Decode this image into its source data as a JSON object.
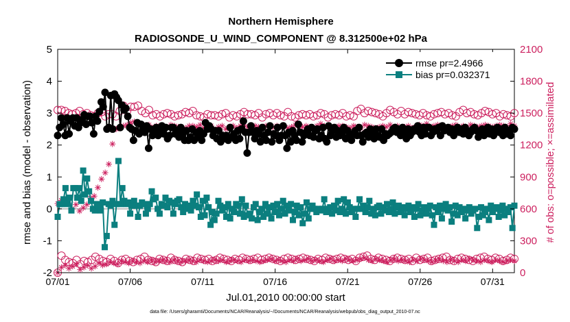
{
  "chart_data": {
    "type": "line",
    "title": "Northern Hemisphere",
    "subtitle": "RADIOSONDE_U_WIND_COMPONENT @ 8.312500e+02 hPa",
    "xlabel": "Jul.01,2010 00:00:00 start",
    "ylabel": "rmse and bias (model - observation)",
    "ylabel_right": "# of obs: o=possible; ×=assimilated",
    "ylim": [
      -2,
      5
    ],
    "ylim_right": [
      0,
      2100
    ],
    "y_ticks": [
      "-2",
      "-1",
      "0",
      "1",
      "2",
      "3",
      "4",
      "5"
    ],
    "y_ticks_right": [
      "0",
      "300",
      "600",
      "900",
      "1200",
      "1500",
      "1800",
      "2100"
    ],
    "x_ticks": [
      "07/01",
      "07/06",
      "07/11",
      "07/16",
      "07/21",
      "07/26",
      "07/31"
    ],
    "xlim_days": [
      1,
      32.5
    ],
    "footnote": "data file: /Users/gharamti/Documents/NCAR/Reanalysis/~/Documents/NCAR/Reanalysis/webpub/obs_diag_output_2010-07.nc",
    "colors": {
      "rmse": "#000000",
      "bias": "#0b7f7f",
      "obs": "#cc1f5e",
      "zero_line": "#b0b0b0"
    },
    "series": [
      {
        "name": "rmse",
        "legend": "rmse pr=2.4966",
        "axis": "left",
        "values": [
          2.3,
          2.55,
          2.85,
          2.65,
          2.3,
          2.85,
          2.35,
          2.75,
          2.85,
          2.6,
          2.85,
          2.55,
          2.7,
          2.8,
          2.95,
          2.65,
          2.9,
          2.9,
          2.7,
          2.35,
          2.9,
          2.75,
          3.05,
          3.35,
          3.2,
          3.65,
          2.5,
          2.55,
          3.55,
          2.5,
          3.6,
          3.5,
          3.4,
          2.55,
          3.25,
          3.1,
          3.15,
          2.9,
          2.55,
          2.5,
          2.15,
          2.45,
          2.7,
          2.35,
          2.65,
          2.5,
          2.4,
          2.6,
          1.9,
          2.5,
          2.3,
          2.35,
          2.55,
          2.3,
          2.45,
          2.6,
          2.35,
          2.55,
          2.2,
          2.3,
          2.55,
          2.55,
          2.35,
          2.45,
          2.25,
          2.55,
          2.35,
          2.15,
          2.45,
          2.15,
          2.25,
          2.5,
          2.15,
          2.4,
          2.25,
          2.45,
          2.15,
          2.35,
          2.7,
          2.5,
          2.6,
          2.5,
          2.3,
          2.45,
          2.2,
          2.45,
          2.1,
          2.3,
          2.2,
          2.3,
          2.15,
          2.55,
          2.25,
          2.35,
          2.15,
          2.45,
          2.2,
          2.5,
          2.75,
          2.4,
          1.75,
          2.4,
          2.6,
          2.4,
          2.2,
          2.45,
          2.35,
          2.1,
          2.55,
          2.3,
          2.15,
          2.4,
          2.6,
          2.1,
          2.35,
          2.3,
          2.55,
          2.15,
          2.3,
          2.6,
          2.3,
          1.9,
          2.4,
          2.1,
          2.45,
          2.3,
          2.15,
          2.65,
          2.4,
          2.1,
          2.3,
          2.4,
          2.5,
          2.3,
          2.55,
          2.25,
          2.45,
          2.5,
          2.2,
          2.3,
          2.55,
          2.2,
          2.1,
          2.6,
          2.3,
          2.45,
          2.55,
          2.25,
          2.45,
          2.3,
          2.35,
          2.55,
          2.2,
          2.45,
          2.3,
          2.15,
          2.35,
          2.45,
          2.3,
          2.55,
          2.3,
          2.1,
          2.35,
          2.4,
          2.25,
          2.5,
          2.35,
          2.2,
          2.5,
          2.3,
          2.25,
          2.5,
          2.15,
          2.35,
          2.3,
          2.35,
          2.4,
          2.5,
          2.55,
          2.4,
          2.5,
          2.3,
          2.55,
          2.35,
          2.2,
          2.5,
          2.3,
          2.4,
          2.5,
          2.45,
          2.6,
          2.4,
          2.3,
          2.55,
          2.35,
          2.55,
          2.55,
          2.3,
          2.4,
          2.5,
          2.45,
          2.55,
          2.3,
          2.6,
          2.45,
          2.5,
          2.55,
          2.4,
          2.5,
          2.3,
          2.45,
          2.55,
          2.4,
          2.5,
          2.35,
          2.55,
          2.45,
          2.3,
          2.4,
          2.5,
          2.55,
          2.45,
          2.25,
          2.4,
          2.5,
          2.3,
          2.45,
          2.55,
          2.35,
          2.5,
          2.3,
          2.45,
          2.55,
          2.4,
          2.5,
          2.3,
          2.55,
          2.35,
          2.45,
          2.3,
          2.55,
          2.5
        ],
        "_comment": "rmse values are sampled per 6-hour cycle from Jul 01 00Z onward"
      },
      {
        "name": "bias",
        "legend": "bias pr=0.032371",
        "axis": "left",
        "values": [
          -0.25,
          0.15,
          0.15,
          0.3,
          0.65,
          0.15,
          0.35,
          -0.05,
          0.65,
          0.65,
          0.35,
          0.65,
          0.25,
          1.2,
          0.45,
          0.95,
          0.55,
          0.25,
          0.0,
          -0.05,
          0.15,
          0.1,
          -0.05,
          0.2,
          -1.2,
          -0.85,
          0.15,
          0.1,
          0.25,
          -0.5,
          0.15,
          1.5,
          0.15,
          0.65,
          0.25,
          0.15,
          0.2,
          -0.15,
          0.1,
          0.25,
          0.1,
          -0.25,
          0.1,
          0.2,
          0.15,
          -0.15,
          0.0,
          0.15,
          0.55,
          0.3,
          0.35,
          0.0,
          -0.15,
          0.15,
          0.1,
          0.35,
          0.05,
          0.25,
          0.2,
          -0.15,
          0.15,
          0.25,
          0.3,
          0.05,
          -0.1,
          0.15,
          0.0,
          0.1,
          -0.05,
          0.25,
          0.1,
          0.45,
          0.05,
          -0.25,
          0.25,
          -0.2,
          0.35,
          0.05,
          -0.5,
          -0.1,
          -0.35,
          -0.15,
          0.25,
          0.1,
          -0.05,
          0.05,
          -0.25,
          0.15,
          -0.3,
          0.0,
          -0.1,
          0.15,
          0.1,
          -0.15,
          0.3,
          -0.25,
          0.1,
          -0.2,
          -0.15,
          -0.3,
          0.05,
          0.15,
          -0.35,
          -0.1,
          0.0,
          -0.25,
          0.15,
          -0.15,
          0.05,
          -0.3,
          0.1,
          -0.1,
          0.15,
          -0.2,
          0.0,
          0.25,
          -0.15,
          0.1,
          -0.05,
          0.15,
          -0.35,
          -0.1,
          0.1,
          -0.2,
          0.05,
          -0.45,
          -0.15,
          0.2,
          -0.3,
          0.0,
          0.1,
          0.0,
          -0.1,
          0.0,
          -0.05,
          0.0,
          0.3,
          -0.1,
          0.0,
          0.05,
          -0.15,
          0.1,
          -0.05,
          0.25,
          -0.1,
          0.0,
          0.3,
          -0.15,
          0.2,
          0.05,
          -0.1,
          0.0,
          -0.25,
          0.0,
          0.3,
          0.0,
          0.1,
          -0.1,
          0.05,
          0.25,
          -0.15,
          0.0,
          -0.2,
          0.05,
          0.1,
          -0.15,
          0.05,
          -0.05,
          0.15,
          -0.1,
          0.0,
          0.2,
          -0.15,
          0.05,
          0.1,
          -0.1,
          0.05,
          -0.2,
          0.0,
          0.1,
          -0.1,
          0.05,
          -0.25,
          0.0,
          0.15,
          -0.2,
          -0.05,
          0.05,
          -0.15,
          0.0,
          0.1,
          -0.2,
          -0.5,
          0.05,
          -0.1,
          0.1,
          -0.3,
          0.0,
          0.15,
          -0.05,
          0.05,
          -0.4,
          -0.15,
          0.1,
          -0.2,
          0.05,
          -0.1,
          0.0,
          -0.3,
          -0.05,
          0.05,
          -0.15,
          -0.05,
          0.0,
          -0.6,
          -0.25,
          0.05,
          -0.2,
          -0.1,
          0.0,
          -0.35,
          0.1,
          -0.1,
          0.0,
          0.05,
          -0.25,
          -0.05,
          0.1,
          -0.2,
          0.0,
          -0.1,
          0.05,
          -0.6,
          0.1
        ],
        "_comment": "bias values sampled per 6-hour cycle"
      },
      {
        "name": "possible_obs_upper",
        "legend": "",
        "axis": "right",
        "marker": "circle",
        "values": [
          1530,
          1530,
          1520,
          1500,
          1490,
          1500,
          1520,
          1490,
          1500,
          1480,
          1470,
          1500,
          1510,
          1470,
          1490,
          1490,
          1470,
          1520,
          1570,
          1520,
          1560,
          1560,
          1570,
          1520,
          1500,
          1530,
          1480,
          1490,
          1470,
          1490,
          1500,
          1490,
          1470,
          1480,
          1490,
          1510,
          1500,
          1520,
          1480,
          1470,
          1460,
          1490,
          1480,
          1480,
          1470,
          1490,
          1500,
          1460,
          1480,
          1470,
          1490,
          1510,
          1490,
          1490,
          1480,
          1500,
          1460,
          1490,
          1500,
          1480,
          1500,
          1480,
          1470,
          1510,
          1470,
          1460,
          1480,
          1490,
          1480,
          1490,
          1470,
          1480,
          1500,
          1490,
          1460,
          1480,
          1490,
          1480,
          1500,
          1470,
          1480,
          1470,
          1520,
          1540,
          1500,
          1520,
          1510,
          1500,
          1490,
          1470,
          1500,
          1530,
          1510,
          1490,
          1520,
          1490,
          1510,
          1500,
          1490,
          1480,
          1500,
          1480,
          1470,
          1490,
          1500,
          1510,
          1490,
          1500,
          1480,
          1470,
          1510,
          1530,
          1500,
          1510,
          1490,
          1480,
          1500,
          1520,
          1510,
          1490,
          1500,
          1470,
          1490,
          1480,
          1470,
          1500
        ],
        "_comment": "approximate counts, roughly 4 per day"
      },
      {
        "name": "assimilated_obs_upper",
        "legend": "",
        "axis": "right",
        "marker": "asterisk",
        "values": [
          650,
          680,
          690,
          650,
          600,
          640,
          580,
          610,
          640,
          700,
          720,
          800,
          880,
          940,
          1020,
          1210,
          1350,
          1360,
          1380,
          1390,
          1410,
          1420,
          1400,
          1380,
          1370,
          1390,
          1360,
          1380,
          1340,
          1360,
          1370,
          1390,
          1380,
          1370,
          1350,
          1360,
          1380,
          1380,
          1370,
          1390,
          1360,
          1370,
          1380,
          1340,
          1370,
          1380,
          1350,
          1370,
          1380,
          1360,
          1380,
          1390,
          1370,
          1360,
          1380,
          1370,
          1360,
          1380,
          1350,
          1370,
          1380,
          1370,
          1380,
          1360,
          1370,
          1390,
          1380,
          1370,
          1380,
          1370,
          1360,
          1380,
          1400,
          1380,
          1370,
          1360,
          1370,
          1380,
          1380,
          1370,
          1360,
          1380,
          1370,
          1360,
          1390,
          1380,
          1370,
          1360,
          1370,
          1380,
          1370,
          1390,
          1370,
          1380,
          1360,
          1370,
          1380,
          1360,
          1370,
          1390,
          1380,
          1400,
          1370,
          1380,
          1390,
          1380,
          1370,
          1360,
          1380,
          1390,
          1370,
          1380,
          1360,
          1390,
          1380,
          1370,
          1380,
          1390,
          1380,
          1370,
          1380,
          1390,
          1380,
          1370,
          1400,
          1380
        ],
        "_comment": "approximate"
      },
      {
        "name": "possible_obs_lower",
        "legend": "",
        "axis": "right",
        "marker": "circle",
        "values": [
          0,
          160,
          120,
          100,
          90,
          120,
          80,
          110,
          100,
          120,
          150,
          130,
          110,
          100,
          130,
          110,
          90,
          120,
          130,
          110,
          100,
          120,
          130,
          150,
          120,
          110,
          100,
          130,
          120,
          110,
          140,
          120,
          110,
          100,
          130,
          120,
          110,
          140,
          130,
          120,
          130,
          110,
          120,
          140,
          130,
          120,
          110,
          130,
          120,
          140,
          130,
          120,
          130,
          140,
          120,
          130,
          140,
          130,
          120,
          110,
          130,
          140,
          130,
          120,
          130,
          140,
          130,
          120,
          110,
          130,
          120,
          140,
          130,
          120,
          130,
          140,
          130,
          120,
          130,
          110,
          140,
          150,
          160,
          130,
          120,
          140,
          130,
          120,
          110,
          130,
          140,
          130,
          120,
          130,
          110,
          140,
          120,
          130,
          140,
          110,
          120,
          130,
          140,
          150,
          120,
          110,
          130,
          140,
          130,
          120,
          110,
          130,
          140,
          150,
          130,
          120,
          140,
          130,
          110,
          120,
          140,
          130
        ],
        "_comment": "approximate"
      },
      {
        "name": "assimilated_obs_lower",
        "legend": "",
        "axis": "right",
        "marker": "asterisk",
        "values": [
          0,
          50,
          70,
          40,
          60,
          80,
          30,
          50,
          70,
          40,
          60,
          90,
          70,
          80,
          100,
          90,
          80,
          110,
          100,
          90,
          110,
          100,
          90,
          110,
          100,
          120,
          100,
          110,
          120,
          110,
          100,
          120,
          110,
          100,
          110,
          120,
          110,
          100,
          120,
          110,
          100,
          110,
          120,
          110,
          120,
          100,
          110,
          120,
          110,
          100,
          120,
          110,
          120,
          110,
          100,
          110,
          120,
          130,
          110,
          120,
          110,
          100,
          120,
          110,
          130,
          110,
          120,
          130,
          110,
          120,
          110,
          100,
          120,
          130,
          110,
          120,
          110,
          130,
          120,
          110,
          120,
          130,
          140,
          120,
          110,
          130,
          120,
          110,
          100,
          120,
          130,
          110,
          120,
          110,
          100,
          120,
          110,
          130,
          120,
          110,
          100,
          120,
          130,
          110,
          100,
          120,
          110,
          100,
          120,
          110,
          130,
          120,
          110,
          100,
          120,
          110,
          100,
          120,
          110,
          100,
          110,
          120,
          110
        ],
        "_comment": "approximate"
      }
    ]
  }
}
